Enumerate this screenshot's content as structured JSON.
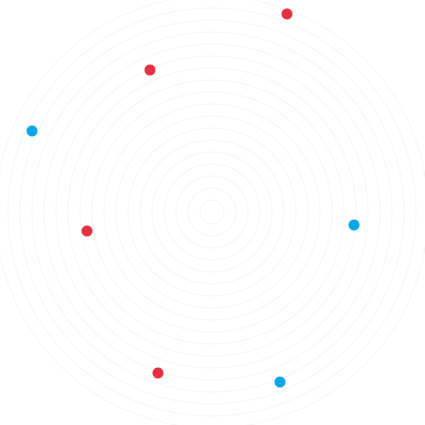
{
  "background": {
    "color": "#ffffff",
    "ring_color": "#f4f4f4",
    "ring_count": 18
  },
  "dot_colors": {
    "red": "#e63142",
    "blue": "#0aa6e6"
  },
  "dots": [
    {
      "id": "dot-red-1",
      "color": "red"
    },
    {
      "id": "dot-red-2",
      "color": "red"
    },
    {
      "id": "dot-blue-1",
      "color": "blue"
    },
    {
      "id": "dot-blue-2",
      "color": "blue"
    },
    {
      "id": "dot-red-3",
      "color": "red"
    },
    {
      "id": "dot-red-4",
      "color": "red"
    },
    {
      "id": "dot-blue-3",
      "color": "blue"
    }
  ]
}
